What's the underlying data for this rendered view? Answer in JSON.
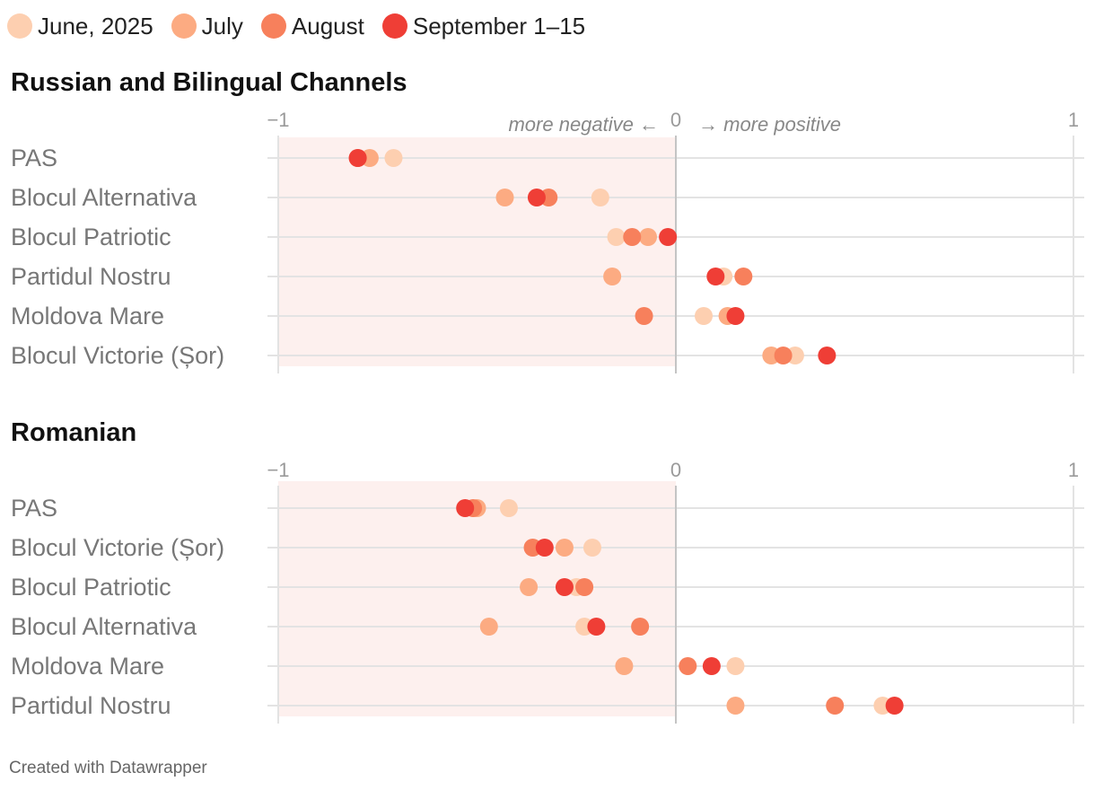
{
  "legend": [
    {
      "label": "June, 2025",
      "color": "#fdcfb0"
    },
    {
      "label": "July",
      "color": "#fcab82"
    },
    {
      "label": "August",
      "color": "#f7805c"
    },
    {
      "label": "September 1–15",
      "color": "#ef3e36"
    }
  ],
  "footer": "Created with Datawrapper",
  "annotations": {
    "negative": "more negative ←",
    "positive": "→ more positive"
  },
  "chart_data": [
    {
      "type": "scatter",
      "title": "Russian and Bilingual Channels",
      "xlim": [
        -1,
        1
      ],
      "x_ticks": [
        "−1",
        "0",
        "1"
      ],
      "negative_shading": true,
      "categories": [
        "PAS",
        "Blocul Alternativa",
        "Blocul Patriotic",
        "Partidul Nostru",
        "Moldova Mare",
        "Blocul Victorie (Șor)"
      ],
      "series": [
        {
          "name": "June, 2025",
          "values": [
            -0.71,
            -0.19,
            -0.15,
            0.12,
            0.07,
            0.3
          ]
        },
        {
          "name": "July",
          "values": [
            -0.77,
            -0.43,
            -0.07,
            -0.16,
            0.13,
            0.24
          ]
        },
        {
          "name": "August",
          "values": [
            -0.8,
            -0.32,
            -0.11,
            0.17,
            -0.08,
            0.27
          ]
        },
        {
          "name": "September 1–15",
          "values": [
            -0.8,
            -0.35,
            -0.02,
            0.1,
            0.15,
            0.38
          ]
        }
      ]
    },
    {
      "type": "scatter",
      "title": "Romanian",
      "xlim": [
        -1,
        1
      ],
      "x_ticks": [
        "−1",
        "0",
        "1"
      ],
      "negative_shading": true,
      "categories": [
        "PAS",
        "Blocul Victorie (Șor)",
        "Blocul Patriotic",
        "Blocul Alternativa",
        "Moldova Mare",
        "Partidul Nostru"
      ],
      "series": [
        {
          "name": "June, 2025",
          "values": [
            -0.42,
            -0.21,
            -0.25,
            -0.23,
            0.15,
            0.52
          ]
        },
        {
          "name": "July",
          "values": [
            -0.5,
            -0.28,
            -0.37,
            -0.47,
            -0.13,
            0.15
          ]
        },
        {
          "name": "August",
          "values": [
            -0.51,
            -0.36,
            -0.23,
            -0.09,
            0.03,
            0.4
          ]
        },
        {
          "name": "September 1–15",
          "values": [
            -0.53,
            -0.33,
            -0.28,
            -0.2,
            0.09,
            0.55
          ]
        }
      ]
    }
  ]
}
